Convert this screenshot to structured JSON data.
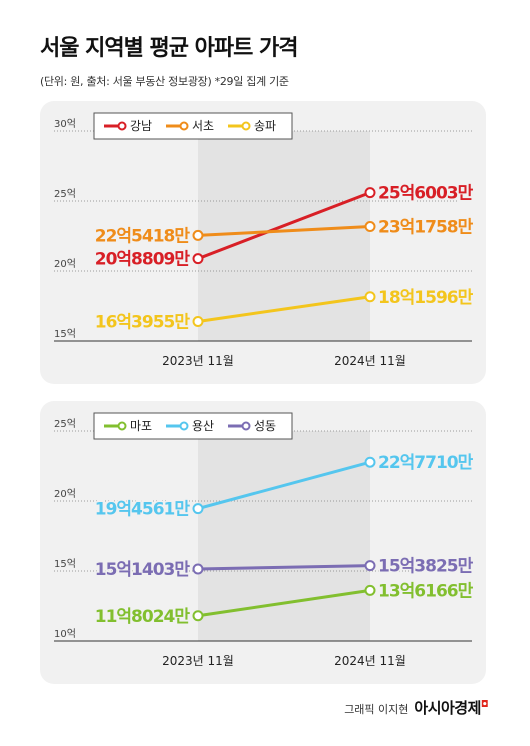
{
  "title": "서울 지역별 평균 아파트 가격",
  "subtitle": "(단위: 원, 출처: 서울 부동산 정보광장) *29일 집계 기준",
  "credit": "그래픽 이지현",
  "brand": "아시아경제",
  "chart_data": [
    {
      "type": "line",
      "x": [
        "2023년 11월",
        "2024년 11월"
      ],
      "ylim": [
        15,
        30
      ],
      "yticks": [
        15,
        20,
        25,
        30
      ],
      "ytick_labels": [
        "15억",
        "20억",
        "25억",
        "30억"
      ],
      "grid": "dotted-horizontal",
      "legend_position": "top-left",
      "series": [
        {
          "name": "강남",
          "color": "#d81f26",
          "values": [
            20.8809,
            25.6003
          ],
          "labels": [
            "20억8809만",
            "25억6003만"
          ]
        },
        {
          "name": "서초",
          "color": "#ef8c1a",
          "values": [
            22.5418,
            23.1758
          ],
          "labels": [
            "22억5418만",
            "23억1758만"
          ]
        },
        {
          "name": "송파",
          "color": "#f3c51d",
          "values": [
            16.3955,
            18.1596
          ],
          "labels": [
            "16억3955만",
            "18억1596만"
          ]
        }
      ]
    },
    {
      "type": "line",
      "x": [
        "2023년 11월",
        "2024년 11월"
      ],
      "ylim": [
        10,
        25
      ],
      "yticks": [
        10,
        15,
        20,
        25
      ],
      "ytick_labels": [
        "10억",
        "15억",
        "20억",
        "25억"
      ],
      "grid": "dotted-horizontal",
      "legend_position": "top-left",
      "series": [
        {
          "name": "마포",
          "color": "#82bf2f",
          "values": [
            11.8024,
            13.6166
          ],
          "labels": [
            "11억8024만",
            "13억6166만"
          ]
        },
        {
          "name": "용산",
          "color": "#55c6ee",
          "values": [
            19.4561,
            22.771
          ],
          "labels": [
            "19억4561만",
            "22억7710만"
          ]
        },
        {
          "name": "성동",
          "color": "#7b6db3",
          "values": [
            15.1403,
            15.3825
          ],
          "labels": [
            "15억1403만",
            "15억3825만"
          ]
        }
      ]
    }
  ]
}
